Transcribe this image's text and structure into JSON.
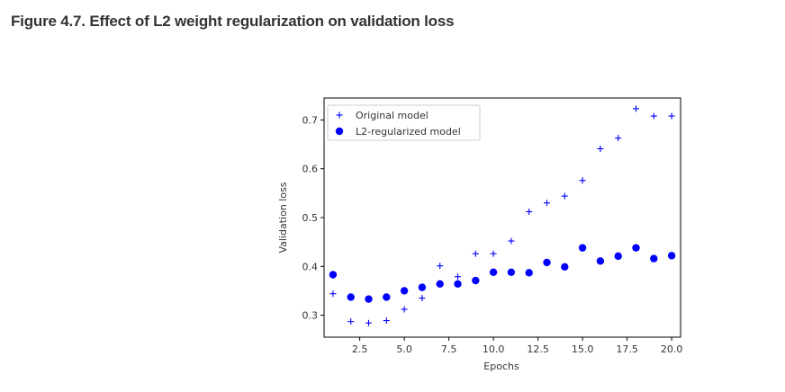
{
  "figure": {
    "caption": "Figure 4.7. Effect of L2 weight regularization on validation loss"
  },
  "chart_data": {
    "type": "scatter",
    "title": "",
    "xlabel": "Epochs",
    "ylabel": "Validation loss",
    "xlim": [
      0.5,
      20.5
    ],
    "ylim": [
      0.255,
      0.745
    ],
    "xticks": [
      2.5,
      5.0,
      7.5,
      10.0,
      12.5,
      15.0,
      17.5,
      20.0
    ],
    "xtick_labels": [
      "2.5",
      "5.0",
      "7.5",
      "10.0",
      "12.5",
      "15.0",
      "17.5",
      "20.0"
    ],
    "yticks": [
      0.3,
      0.4,
      0.5,
      0.6,
      0.7
    ],
    "ytick_labels": [
      "0.3",
      "0.4",
      "0.5",
      "0.6",
      "0.7"
    ],
    "grid": false,
    "legend_position": "top-left",
    "series": [
      {
        "name": "Original model",
        "marker": "plus",
        "color": "#0000ff",
        "x": [
          1,
          2,
          3,
          4,
          5,
          6,
          7,
          8,
          9,
          10,
          11,
          12,
          13,
          14,
          15,
          16,
          17,
          18,
          19,
          20
        ],
        "y": [
          0.344,
          0.287,
          0.284,
          0.289,
          0.312,
          0.335,
          0.401,
          0.379,
          0.426,
          0.426,
          0.452,
          0.512,
          0.53,
          0.544,
          0.576,
          0.641,
          0.663,
          0.723,
          0.708,
          0.708
        ]
      },
      {
        "name": "L2-regularized model",
        "marker": "circle",
        "color": "#0000ff",
        "x": [
          1,
          2,
          3,
          4,
          5,
          6,
          7,
          8,
          9,
          10,
          11,
          12,
          13,
          14,
          15,
          16,
          17,
          18,
          19,
          20
        ],
        "y": [
          0.383,
          0.337,
          0.333,
          0.337,
          0.35,
          0.357,
          0.364,
          0.364,
          0.371,
          0.388,
          0.388,
          0.387,
          0.408,
          0.399,
          0.438,
          0.411,
          0.421,
          0.438,
          0.416,
          0.422
        ]
      }
    ]
  }
}
